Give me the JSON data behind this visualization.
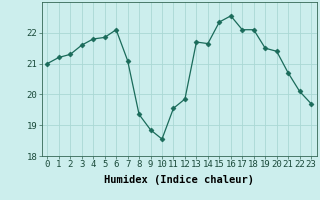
{
  "x": [
    0,
    1,
    2,
    3,
    4,
    5,
    6,
    7,
    8,
    9,
    10,
    11,
    12,
    13,
    14,
    15,
    16,
    17,
    18,
    19,
    20,
    21,
    22,
    23
  ],
  "y": [
    21.0,
    21.2,
    21.3,
    21.6,
    21.8,
    21.85,
    22.1,
    21.1,
    19.35,
    18.85,
    18.55,
    19.55,
    19.85,
    21.7,
    21.65,
    22.35,
    22.55,
    22.1,
    22.1,
    21.5,
    21.4,
    20.7,
    20.1,
    19.7
  ],
  "line_color": "#1a6b5a",
  "marker": "D",
  "marker_size": 2.5,
  "bg_color": "#cceeed",
  "grid_color": "#aad8d4",
  "xlabel": "Humidex (Indice chaleur)",
  "xlim": [
    -0.5,
    23.5
  ],
  "ylim": [
    18,
    23
  ],
  "yticks": [
    18,
    19,
    20,
    21,
    22
  ],
  "xticks": [
    0,
    1,
    2,
    3,
    4,
    5,
    6,
    7,
    8,
    9,
    10,
    11,
    12,
    13,
    14,
    15,
    16,
    17,
    18,
    19,
    20,
    21,
    22,
    23
  ],
  "xlabel_fontsize": 7.5,
  "tick_fontsize": 6.5
}
